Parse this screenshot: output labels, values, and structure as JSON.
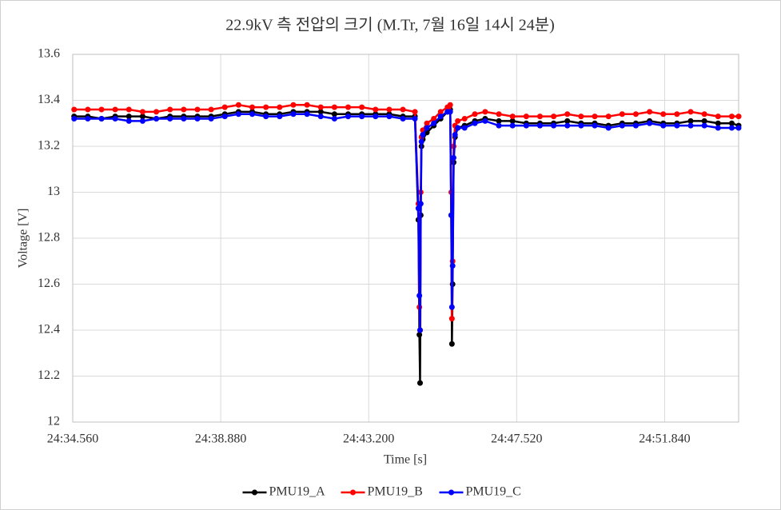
{
  "chart_data": {
    "type": "line",
    "title": "22.9kV 측 전압의 크기 (M.Tr, 7월 16일 14시 24분)",
    "x_label": "Time [s]",
    "y_label": "Voltage [V]",
    "x": [
      34.6,
      35.0,
      35.4,
      35.8,
      36.2,
      36.6,
      37.0,
      37.4,
      37.8,
      38.2,
      38.6,
      39.0,
      39.4,
      39.8,
      40.2,
      40.6,
      41.0,
      41.4,
      41.8,
      42.2,
      42.6,
      43.0,
      43.4,
      43.8,
      44.2,
      44.55,
      44.65,
      44.68,
      44.7,
      44.72,
      44.74,
      44.78,
      44.9,
      45.1,
      45.3,
      45.5,
      45.58,
      45.61,
      45.63,
      45.65,
      45.68,
      45.72,
      45.8,
      46.0,
      46.3,
      46.6,
      47.0,
      47.4,
      47.8,
      48.2,
      48.6,
      49.0,
      49.4,
      49.8,
      50.2,
      50.6,
      51.0,
      51.4,
      51.8,
      52.2,
      52.6,
      53.0,
      53.4,
      53.8,
      54.0
    ],
    "series": [
      {
        "name": "PMU19_A",
        "color": "#000000",
        "values": [
          13.33,
          13.33,
          13.32,
          13.33,
          13.33,
          13.33,
          13.32,
          13.33,
          13.33,
          13.33,
          13.33,
          13.34,
          13.35,
          13.35,
          13.34,
          13.34,
          13.35,
          13.35,
          13.35,
          13.34,
          13.34,
          13.34,
          13.34,
          13.34,
          13.33,
          13.33,
          12.88,
          12.38,
          12.17,
          12.9,
          13.2,
          13.23,
          13.26,
          13.29,
          13.32,
          13.35,
          13.36,
          12.9,
          12.34,
          12.6,
          13.13,
          13.24,
          13.28,
          13.29,
          13.31,
          13.32,
          13.31,
          13.31,
          13.3,
          13.3,
          13.3,
          13.31,
          13.3,
          13.3,
          13.29,
          13.3,
          13.3,
          13.31,
          13.3,
          13.3,
          13.31,
          13.31,
          13.3,
          13.3,
          13.29
        ]
      },
      {
        "name": "PMU19_B",
        "color": "#ff0000",
        "values": [
          13.36,
          13.36,
          13.36,
          13.36,
          13.36,
          13.35,
          13.35,
          13.36,
          13.36,
          13.36,
          13.36,
          13.37,
          13.38,
          13.37,
          13.37,
          13.37,
          13.38,
          13.38,
          13.37,
          13.37,
          13.37,
          13.37,
          13.36,
          13.36,
          13.36,
          13.35,
          12.95,
          12.5,
          12.4,
          13.0,
          13.24,
          13.27,
          13.3,
          13.32,
          13.35,
          13.37,
          13.38,
          13.0,
          12.45,
          12.7,
          13.2,
          13.29,
          13.31,
          13.32,
          13.34,
          13.35,
          13.34,
          13.33,
          13.33,
          13.33,
          13.33,
          13.34,
          13.33,
          13.33,
          13.33,
          13.34,
          13.34,
          13.35,
          13.34,
          13.34,
          13.35,
          13.34,
          13.33,
          13.33,
          13.33
        ]
      },
      {
        "name": "PMU19_C",
        "color": "#0000ff",
        "values": [
          13.32,
          13.32,
          13.32,
          13.32,
          13.31,
          13.31,
          13.32,
          13.32,
          13.32,
          13.32,
          13.32,
          13.33,
          13.34,
          13.34,
          13.33,
          13.33,
          13.34,
          13.34,
          13.33,
          13.32,
          13.33,
          13.33,
          13.33,
          13.33,
          13.32,
          13.32,
          12.93,
          12.55,
          12.4,
          12.95,
          13.22,
          13.25,
          13.28,
          13.3,
          13.33,
          13.35,
          13.35,
          12.9,
          12.5,
          12.68,
          13.15,
          13.25,
          13.28,
          13.28,
          13.3,
          13.31,
          13.29,
          13.29,
          13.29,
          13.29,
          13.29,
          13.29,
          13.29,
          13.29,
          13.28,
          13.29,
          13.29,
          13.3,
          13.29,
          13.29,
          13.29,
          13.29,
          13.28,
          13.28,
          13.28
        ]
      }
    ],
    "xlim": [
      34.56,
      54.0
    ],
    "xticks": [
      {
        "value": 34.56,
        "label": "24:34.560"
      },
      {
        "value": 38.88,
        "label": "24:38.880"
      },
      {
        "value": 43.2,
        "label": "24:43.200"
      },
      {
        "value": 47.52,
        "label": "24:47.520"
      },
      {
        "value": 51.84,
        "label": "24:51.840"
      }
    ],
    "ylim": [
      12,
      13.6
    ],
    "yticks": [
      12,
      12.2,
      12.4,
      12.6,
      12.8,
      13,
      13.2,
      13.4,
      13.6
    ],
    "grid": true,
    "legend": "bottom"
  }
}
